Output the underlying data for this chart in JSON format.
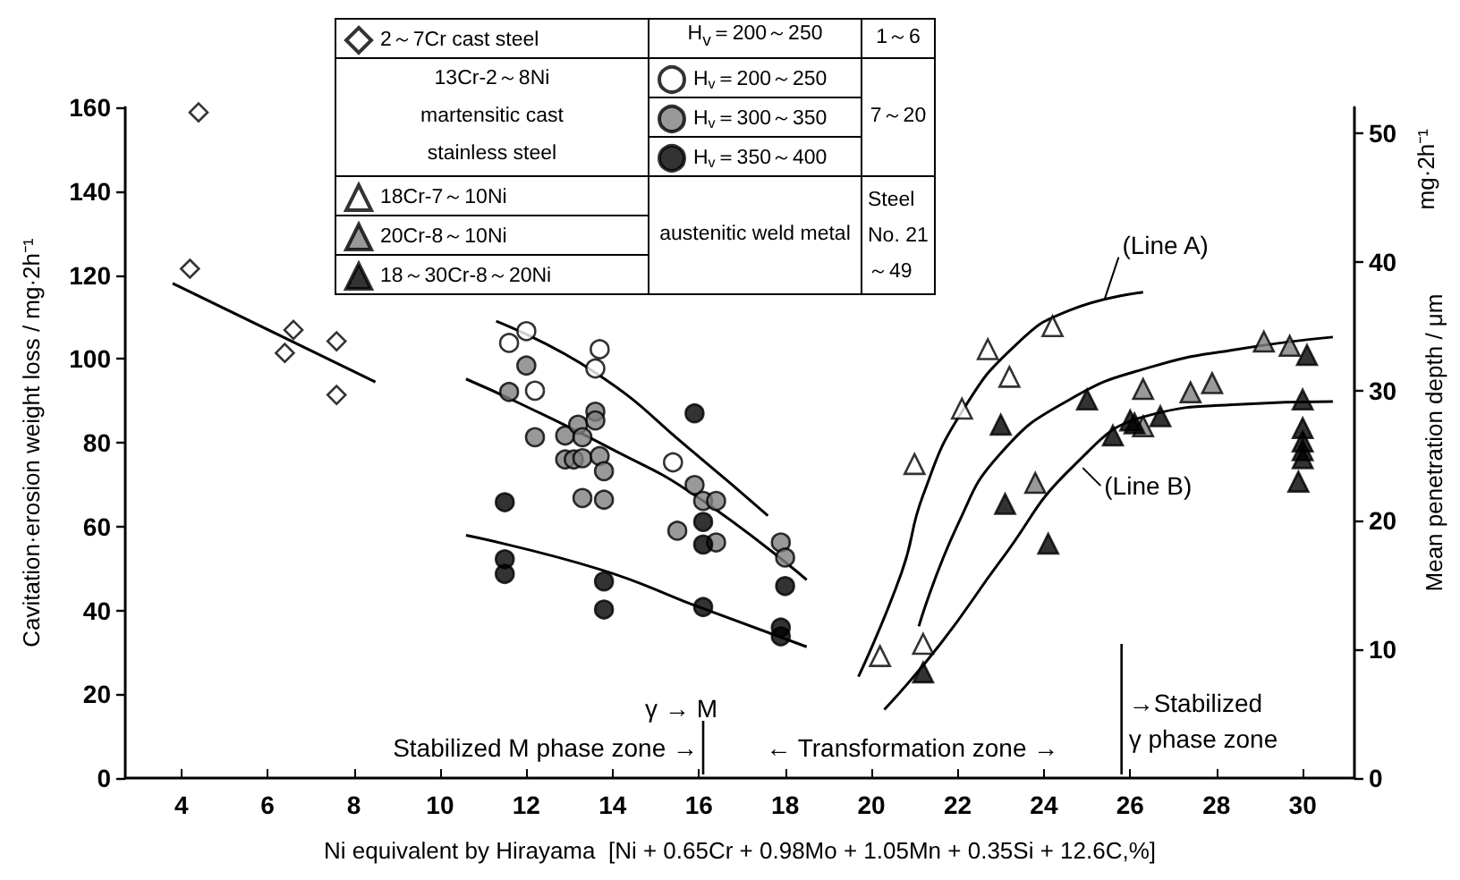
{
  "chart_data": {
    "type": "scatter",
    "xlabel": "Ni equivalent by Hirayama  [Ni + 0.65Cr + 0.98Mo + 1.05Mn + 0.35Si + 12.6C,%]",
    "ylabel": "Cavitation·erosion weight loss / mg·2h⁻¹",
    "y2label": "Mean penetration depth / μm",
    "xlim": [
      2.7,
      31.2
    ],
    "xticks": [
      4,
      6,
      8,
      10,
      12,
      14,
      16,
      18,
      20,
      22,
      24,
      26,
      28,
      30
    ],
    "ylim": [
      0,
      160
    ],
    "yticks": [
      0,
      20,
      40,
      60,
      80,
      100,
      120,
      140,
      160
    ],
    "y2lim": [
      0,
      52
    ],
    "y2ticks": [
      0,
      10,
      20,
      30,
      40,
      50
    ],
    "grid": false,
    "legend": "top left",
    "series": [
      {
        "name": "2～7Cr cast steel",
        "marker": "diamond",
        "color": "#ffffff",
        "x": [
          4.4,
          4.2,
          6.6,
          6.4,
          7.6,
          7.6
        ],
        "values": [
          158.8,
          121.5,
          106.9,
          101.4,
          104.2,
          91.4
        ]
      },
      {
        "name": "H$_{v}$＝200～250",
        "marker": "circle",
        "color": "#ffffff",
        "x": [
          12.0,
          11.6,
          12.2,
          13.7,
          13.6,
          15.4
        ],
        "values": [
          106.6,
          103.8,
          92.4,
          102.3,
          97.7,
          75.3
        ]
      },
      {
        "name": "H$_{v}$＝300～350",
        "marker": "circle",
        "color": "#808080",
        "x": [
          12.0,
          11.6,
          12.2,
          12.9,
          13.2,
          13.3,
          13.6,
          13.6,
          12.9,
          13.1,
          13.3,
          13.7,
          13.8,
          13.3,
          13.8,
          15.9,
          16.1,
          16.4,
          15.5,
          16.4,
          17.9,
          18.0
        ],
        "values": [
          98.4,
          92.1,
          81.3,
          81.7,
          84.3,
          81.3,
          87.4,
          85.3,
          76.0,
          76.0,
          76.3,
          76.8,
          73.2,
          66.8,
          66.4,
          69.9,
          66.1,
          66.1,
          59.0,
          56.2,
          56.2,
          52.6
        ]
      },
      {
        "name": "H$_{v}$＝350～400",
        "marker": "circle",
        "color": "#000000",
        "x": [
          11.5,
          11.5,
          11.5,
          13.8,
          13.8,
          15.9,
          16.1,
          16.1,
          16.1,
          18.0,
          17.9,
          17.9
        ],
        "values": [
          65.8,
          52.2,
          48.7,
          46.9,
          40.2,
          87.0,
          61.1,
          55.7,
          40.8,
          45.8,
          35.9,
          33.8
        ]
      },
      {
        "name": "18Cr-7～10Ni",
        "marker": "triangle",
        "color": "#ffffff",
        "x": [
          20.2,
          21.2,
          21.0,
          22.1,
          22.7,
          23.2,
          24.2
        ],
        "values": [
          29.1,
          32.0,
          74.9,
          88.1,
          102.3,
          95.7,
          107.8
        ]
      },
      {
        "name": "20Cr-8～10Ni",
        "marker": "triangle",
        "color": "#808080",
        "x": [
          23.8,
          26.3,
          26.3,
          27.4,
          27.9,
          29.1,
          29.7
        ],
        "values": [
          70.4,
          83.9,
          92.8,
          92.0,
          94.2,
          104.1,
          103.1
        ]
      },
      {
        "name": "18～30Cr-8～20Ni",
        "marker": "triangle",
        "color": "#000000",
        "x": [
          21.2,
          23.1,
          23.0,
          24.1,
          25.0,
          25.6,
          26.0,
          26.1,
          26.7,
          30.1,
          30.0,
          30.0,
          30.0,
          30.0,
          30.0,
          29.9
        ],
        "values": [
          25.2,
          65.4,
          84.3,
          55.9,
          90.3,
          81.7,
          85.3,
          84.6,
          86.3,
          100.9,
          90.3,
          83.5,
          80.3,
          78.2,
          76.3,
          70.7
        ]
      },
      {
        "type": "line",
        "marker": "none",
        "color": "#000000",
        "x": [
          3.8,
          8.5
        ],
        "values": [
          118,
          94.5
        ]
      },
      {
        "type": "line",
        "marker": "none",
        "color": "#000000",
        "x": [
          11.3,
          13.6,
          15.9,
          17.6
        ],
        "values": [
          109.0,
          96.7,
          77.5,
          62.6
        ]
      },
      {
        "type": "line",
        "marker": "none",
        "color": "#000000",
        "x": [
          10.6,
          11.8,
          13.9,
          15.9,
          18.5
        ],
        "values": [
          95.2,
          89.6,
          78.9,
          67.5,
          47.3
        ]
      },
      {
        "type": "line",
        "marker": "none",
        "color": "#000000",
        "x": [
          10.6,
          13.7,
          15.9,
          18.5
        ],
        "values": [
          57.9,
          49.8,
          41.2,
          31.3
        ]
      },
      {
        "type": "line",
        "marker": "none",
        "color": "#000000",
        "x": [
          19.7,
          20.7,
          21.2,
          22.1,
          23.4,
          24.6,
          26.3
        ],
        "values": [
          24.2,
          49.0,
          67.5,
          87.4,
          103.8,
          111.6,
          115.9
        ]
      },
      {
        "type": "line",
        "marker": "none",
        "color": "#000000",
        "x": [
          21.1,
          22.0,
          23.0,
          24.6,
          26.5,
          28.5,
          30.7
        ],
        "values": [
          36.2,
          60.4,
          77.5,
          90.3,
          98.1,
          102.3,
          105.2
        ]
      },
      {
        "type": "line",
        "marker": "none",
        "color": "#000000",
        "x": [
          20.3,
          21.6,
          23.0,
          24.7,
          26.5,
          28.5,
          30.7
        ],
        "values": [
          16.3,
          32.0,
          51.9,
          74.6,
          86.7,
          89.1,
          89.8
        ]
      }
    ],
    "ref_lines": [
      {
        "axis": "x",
        "value": 16.1
      },
      {
        "axis": "x",
        "value": 25.8
      }
    ],
    "annotations": [
      "H$_{v}$＝200～250",
      "1～6",
      "13Cr-2～8Ni",
      "martensitic cast",
      "stainless steel",
      "7～20",
      "austenitic weld metal",
      "Steel No. 21～49",
      "Stabilized M phase zone →",
      "← Transformation zone →",
      "→Stabilized γ phase zone",
      "γ → M",
      {
        "text": "(Line A)",
        "x": 25.4,
        "y": 114
      },
      {
        "text": "(Line B)",
        "x": 24.9,
        "y": 74
      },
      "mg·2h⁻¹"
    ]
  }
}
